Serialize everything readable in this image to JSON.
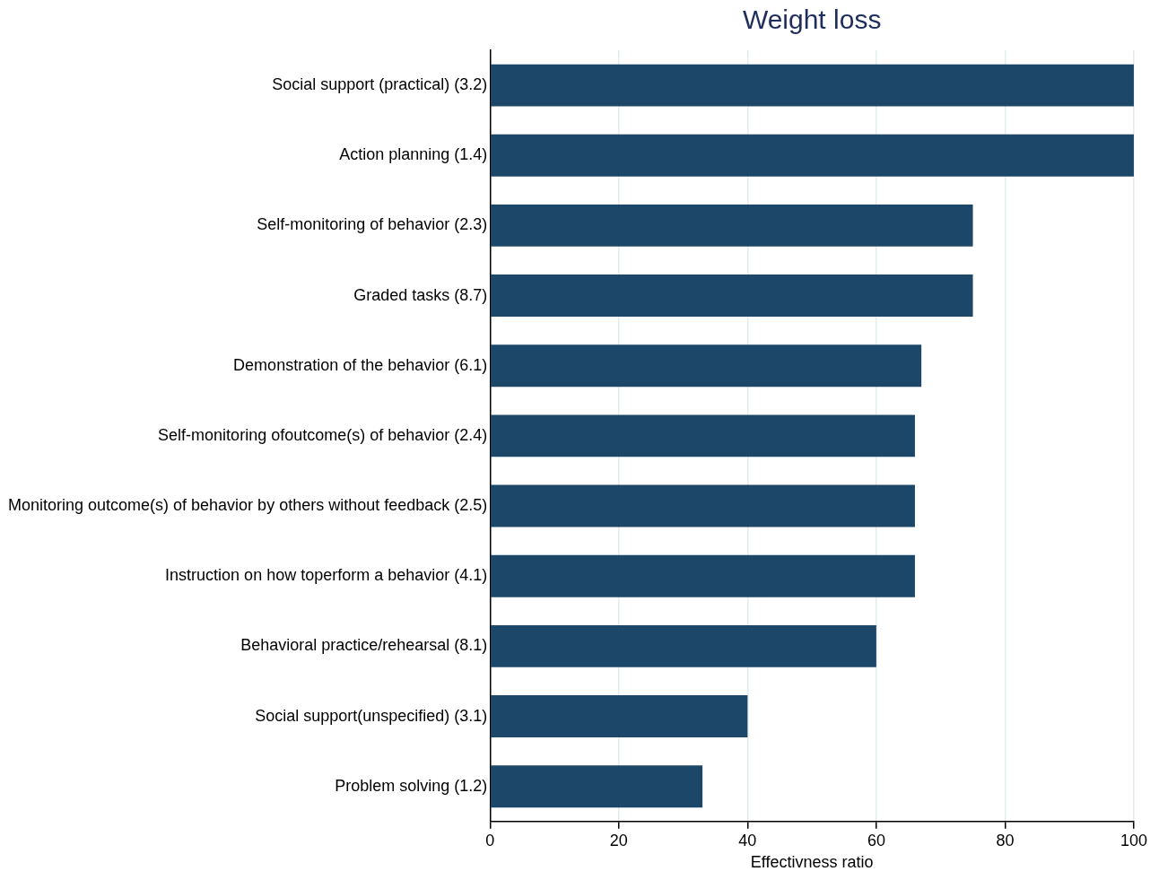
{
  "chart_data": {
    "type": "bar",
    "orientation": "horizontal",
    "title": "Weight loss",
    "xlabel": "Effectivness ratio",
    "categories": [
      "Social support (practical) (3.2)",
      "Action planning (1.4)",
      "Self-monitoring of behavior (2.3)",
      "Graded tasks (8.7)",
      "Demonstration of the behavior (6.1)",
      "Self-monitoring ofoutcome(s) of behavior (2.4)",
      "Monitoring outcome(s) of behavior by others without feedback (2.5)",
      "Instruction on how toperform a behavior (4.1)",
      "Behavioral practice/rehearsal (8.1)",
      "Social support(unspecified) (3.1)",
      "Problem solving (1.2)"
    ],
    "values": [
      100,
      100,
      75,
      75,
      67,
      66,
      66,
      66,
      60,
      40,
      33
    ],
    "color": "#1c4769",
    "xlim": [
      0,
      100
    ],
    "xticks": [
      0,
      20,
      40,
      60,
      80,
      100
    ],
    "grid": "x",
    "legend": false
  }
}
